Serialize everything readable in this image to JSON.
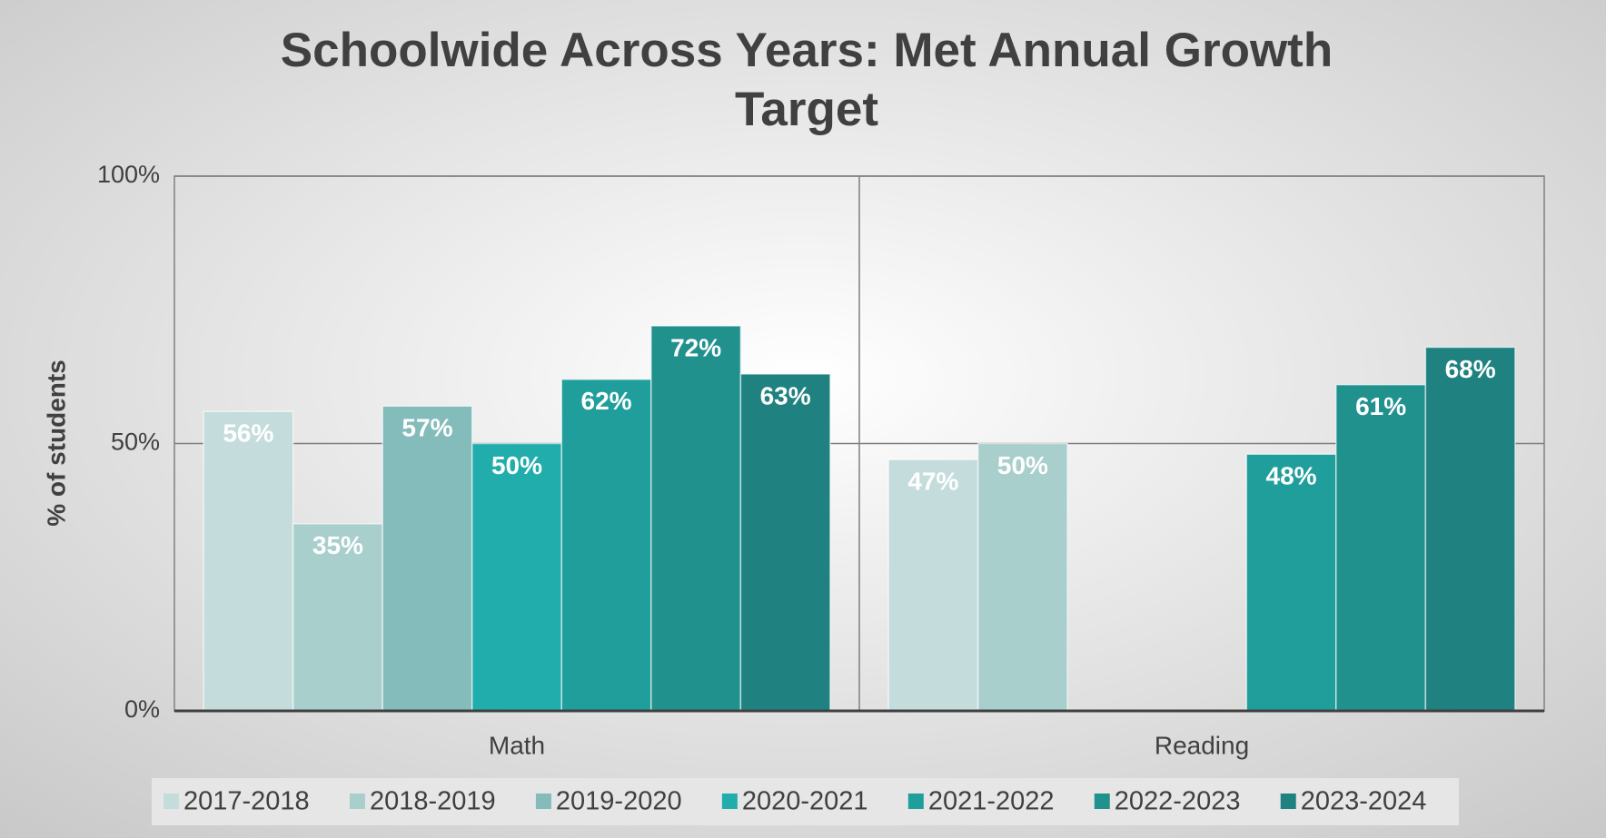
{
  "chart_data": {
    "type": "bar",
    "title": "Schoolwide Across Years: Met Annual Growth Target",
    "y_label": "% of students",
    "categories": [
      "Math",
      "Reading"
    ],
    "series": [
      {
        "name": "2017-2018",
        "color": "#c5dcdc",
        "values": [
          56,
          47
        ],
        "value_labels": [
          "56%",
          "47%"
        ]
      },
      {
        "name": "2018-2019",
        "color": "#a9cfcd",
        "values": [
          35,
          50
        ],
        "value_labels": [
          "35%",
          "50%"
        ]
      },
      {
        "name": "2019-2020",
        "color": "#84bcbb",
        "values": [
          57,
          null
        ],
        "value_labels": [
          "57%",
          null
        ]
      },
      {
        "name": "2020-2021",
        "color": "#22adad",
        "values": [
          50,
          null
        ],
        "value_labels": [
          "50%",
          null
        ]
      },
      {
        "name": "2021-2022",
        "color": "#1f9e9b",
        "values": [
          62,
          48
        ],
        "value_labels": [
          "62%",
          "48%"
        ]
      },
      {
        "name": "2022-2023",
        "color": "#21918e",
        "values": [
          72,
          61
        ],
        "value_labels": [
          "72%",
          "61%"
        ]
      },
      {
        "name": "2023-2024",
        "color": "#1f8280",
        "values": [
          63,
          68
        ],
        "value_labels": [
          "63%",
          "68%"
        ]
      }
    ],
    "ylim": [
      0,
      100
    ],
    "yticks": [
      {
        "value": 0,
        "label": "0%"
      },
      {
        "value": 50,
        "label": "50%"
      },
      {
        "value": 100,
        "label": "100%"
      }
    ],
    "grid": true,
    "legend": "bottom"
  }
}
